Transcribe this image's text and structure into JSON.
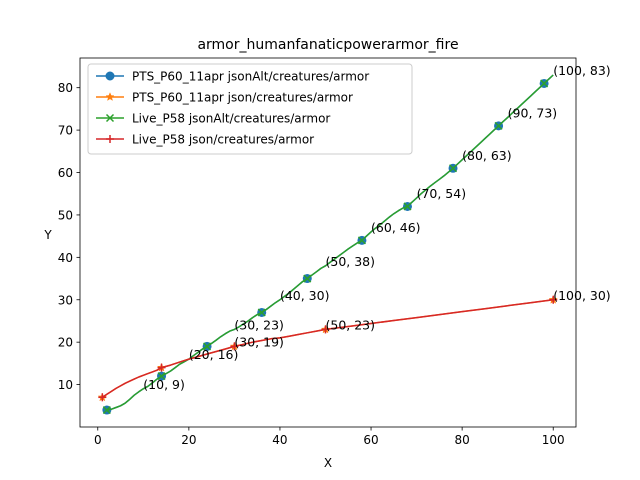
{
  "chart_data": {
    "type": "line",
    "title": "armor_humanfanaticpowerarmor_fire",
    "xlabel": "X",
    "ylabel": "Y",
    "xlim": [
      -3.9,
      105
    ],
    "ylim": [
      0,
      87
    ],
    "xticks": [
      0,
      20,
      40,
      60,
      80,
      100
    ],
    "yticks": [
      10,
      20,
      30,
      40,
      50,
      60,
      70,
      80
    ],
    "legend_position": "upper-left",
    "grid": false,
    "series": [
      {
        "name": "PTS_P60_11apr jsonAlt/creatures/armor",
        "color": "#1f77b4",
        "marker": "circle",
        "x": [
          2,
          14,
          24,
          36,
          46,
          58,
          68,
          78,
          88,
          98
        ],
        "y": [
          4,
          12,
          19,
          27,
          35,
          44,
          52,
          61,
          71,
          81
        ]
      },
      {
        "name": "PTS_P60_11apr json/creatures/armor",
        "color": "#ff7f0e",
        "marker": "star",
        "x": [
          1,
          14,
          30,
          50,
          100
        ],
        "y": [
          7,
          14,
          19,
          23,
          30
        ]
      },
      {
        "name": "Live_P58 jsonAlt/creatures/armor",
        "color": "#2ca02c",
        "marker": "x",
        "x": [
          2,
          14,
          24,
          36,
          46,
          58,
          68,
          78,
          88,
          98
        ],
        "y": [
          4,
          12,
          19,
          27,
          35,
          44,
          52,
          61,
          71,
          81
        ]
      },
      {
        "name": "Live_P58 json/creatures/armor",
        "color": "#d62728",
        "marker": "plus",
        "x": [
          1,
          14,
          30,
          50,
          100
        ],
        "y": [
          7,
          14,
          19,
          23,
          30
        ]
      }
    ],
    "curves": {
      "alt": [
        [
          2,
          4
        ],
        [
          3,
          4.2
        ],
        [
          4,
          4.6
        ],
        [
          5,
          5
        ],
        [
          6,
          5.6
        ],
        [
          7,
          6.5
        ],
        [
          8,
          7.5
        ],
        [
          9,
          8.3
        ],
        [
          10,
          9
        ],
        [
          11,
          9.6
        ],
        [
          12,
          10.4
        ],
        [
          13,
          11.3
        ],
        [
          14,
          12
        ],
        [
          15,
          12.6
        ],
        [
          16,
          13.2
        ],
        [
          17,
          14
        ],
        [
          18,
          14.8
        ],
        [
          19,
          15.4
        ],
        [
          20,
          16
        ],
        [
          21,
          16.8
        ],
        [
          22,
          17.6
        ],
        [
          23,
          18.4
        ],
        [
          24,
          19
        ],
        [
          25,
          19.7
        ],
        [
          26,
          20.5
        ],
        [
          27,
          21.3
        ],
        [
          28,
          22
        ],
        [
          29,
          22.6
        ],
        [
          30,
          23
        ],
        [
          31,
          23.6
        ],
        [
          32,
          24.3
        ],
        [
          33,
          25
        ],
        [
          34,
          25.8
        ],
        [
          35,
          26.5
        ],
        [
          36,
          27
        ],
        [
          37,
          27.7
        ],
        [
          38,
          28.5
        ],
        [
          39,
          29.3
        ],
        [
          40,
          30
        ],
        [
          41,
          30.8
        ],
        [
          42,
          31.6
        ],
        [
          43,
          32.5
        ],
        [
          44,
          33.4
        ],
        [
          45,
          34.3
        ],
        [
          46,
          35
        ],
        [
          47,
          35.8
        ],
        [
          48,
          36.6
        ],
        [
          49,
          37.4
        ],
        [
          50,
          38
        ],
        [
          51,
          38.8
        ],
        [
          52,
          39.6
        ],
        [
          53,
          40.4
        ],
        [
          54,
          41.2
        ],
        [
          55,
          42
        ],
        [
          56,
          42.7
        ],
        [
          57,
          43.4
        ],
        [
          58,
          44
        ],
        [
          59,
          45
        ],
        [
          60,
          46
        ],
        [
          61,
          46.9
        ],
        [
          62,
          47.7
        ],
        [
          63,
          48.6
        ],
        [
          64,
          49.5
        ],
        [
          65,
          50.3
        ],
        [
          66,
          51
        ],
        [
          67,
          51.6
        ],
        [
          68,
          52
        ],
        [
          69,
          53
        ],
        [
          70,
          54
        ],
        [
          71,
          55
        ],
        [
          72,
          55.9
        ],
        [
          73,
          56.8
        ],
        [
          74,
          57.6
        ],
        [
          75,
          58.4
        ],
        [
          76,
          59.2
        ],
        [
          77,
          60.1
        ],
        [
          78,
          61
        ],
        [
          79,
          62
        ],
        [
          80,
          63
        ],
        [
          81,
          64
        ],
        [
          82,
          65
        ],
        [
          83,
          66
        ],
        [
          84,
          67
        ],
        [
          85,
          68
        ],
        [
          86,
          69
        ],
        [
          87,
          70
        ],
        [
          88,
          71
        ],
        [
          89,
          72
        ],
        [
          90,
          73
        ],
        [
          91,
          74
        ],
        [
          92,
          75
        ],
        [
          93,
          76
        ],
        [
          94,
          77
        ],
        [
          95,
          78
        ],
        [
          96,
          79
        ],
        [
          97,
          80
        ],
        [
          98,
          81
        ],
        [
          99,
          82
        ],
        [
          100,
          83
        ]
      ],
      "json": [
        [
          1,
          7
        ],
        [
          2,
          7.7
        ],
        [
          3,
          8.4
        ],
        [
          4,
          9.1
        ],
        [
          5,
          9.7
        ],
        [
          6,
          10.3
        ],
        [
          7,
          10.8
        ],
        [
          8,
          11.3
        ],
        [
          9,
          11.8
        ],
        [
          10,
          12.2
        ],
        [
          11,
          12.6
        ],
        [
          12,
          13
        ],
        [
          13,
          13.4
        ],
        [
          14,
          14
        ],
        [
          16,
          14.6
        ],
        [
          18,
          15.3
        ],
        [
          20,
          16
        ],
        [
          22,
          16.6
        ],
        [
          24,
          17.2
        ],
        [
          26,
          17.8
        ],
        [
          28,
          18.4
        ],
        [
          30,
          19
        ],
        [
          32,
          19.5
        ],
        [
          34,
          20
        ],
        [
          36,
          20.4
        ],
        [
          38,
          20.8
        ],
        [
          40,
          21
        ],
        [
          42,
          21.4
        ],
        [
          44,
          21.8
        ],
        [
          46,
          22.2
        ],
        [
          48,
          22.6
        ],
        [
          50,
          23
        ],
        [
          55,
          23.7
        ],
        [
          60,
          24.4
        ],
        [
          65,
          25.1
        ],
        [
          70,
          25.8
        ],
        [
          75,
          26.5
        ],
        [
          80,
          27.2
        ],
        [
          85,
          27.9
        ],
        [
          90,
          28.6
        ],
        [
          95,
          29.3
        ],
        [
          100,
          30
        ]
      ]
    },
    "annotations": [
      {
        "text": "(10, 9)",
        "x": 10,
        "y": 9
      },
      {
        "text": "(20, 16)",
        "x": 20,
        "y": 16
      },
      {
        "text": "(30, 23)",
        "x": 30,
        "y": 23
      },
      {
        "text": "(30, 19)",
        "x": 30,
        "y": 19
      },
      {
        "text": "(40, 30)",
        "x": 40,
        "y": 30
      },
      {
        "text": "(50, 38)",
        "x": 50,
        "y": 38
      },
      {
        "text": "(50, 23)",
        "x": 50,
        "y": 23
      },
      {
        "text": "(60, 46)",
        "x": 60,
        "y": 46
      },
      {
        "text": "(70, 54)",
        "x": 70,
        "y": 54
      },
      {
        "text": "(80, 63)",
        "x": 80,
        "y": 63
      },
      {
        "text": "(90, 73)",
        "x": 90,
        "y": 73
      },
      {
        "text": "(100, 83)",
        "x": 100,
        "y": 83
      },
      {
        "text": "(100, 30)",
        "x": 100,
        "y": 30
      }
    ]
  }
}
